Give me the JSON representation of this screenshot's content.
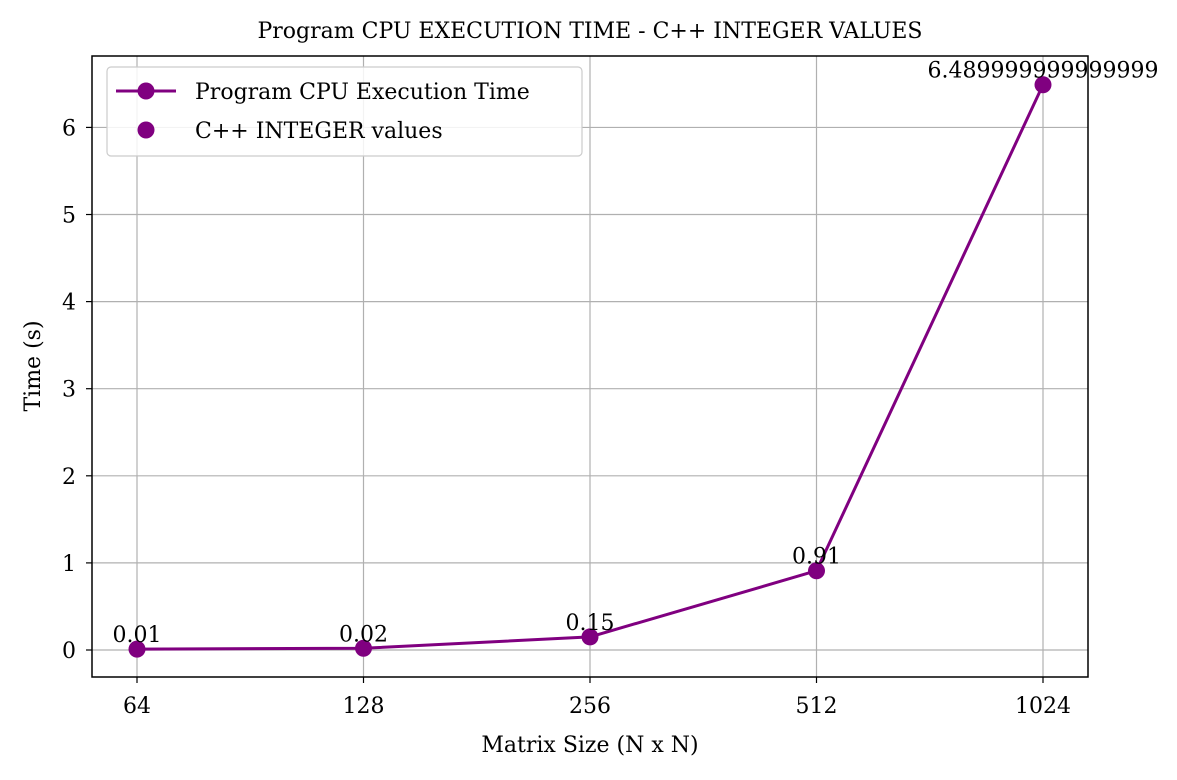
{
  "chart_data": {
    "type": "line",
    "title": "Program CPU EXECUTION TIME - C++ INTEGER VALUES",
    "xlabel": "Matrix Size (N x N)",
    "ylabel": "Time (s)",
    "categories": [
      "64",
      "128",
      "256",
      "512",
      "1024"
    ],
    "series": [
      {
        "name": "Program CPU Execution Time",
        "values": [
          0.01,
          0.02,
          0.15,
          0.91,
          6.489999999999999
        ],
        "color": "#800080",
        "marker": "circle",
        "line": true
      }
    ],
    "data_labels": [
      "0.01",
      "0.02",
      "0.15",
      "0.91",
      "6.489999999999999"
    ],
    "legend": {
      "placement": "top-left",
      "entries": [
        {
          "label": "Program CPU Execution Time",
          "style": "line-marker"
        },
        {
          "label": "C++ INTEGER values",
          "style": "marker"
        }
      ]
    },
    "yticks": [
      0,
      1,
      2,
      3,
      4,
      5,
      6
    ],
    "ylim": [
      -0.31,
      6.82
    ],
    "grid": true,
    "colors": {
      "series": "#800080",
      "grid": "#b0b0b0",
      "axes": "#000000",
      "legend_border": "#cccccc"
    }
  }
}
